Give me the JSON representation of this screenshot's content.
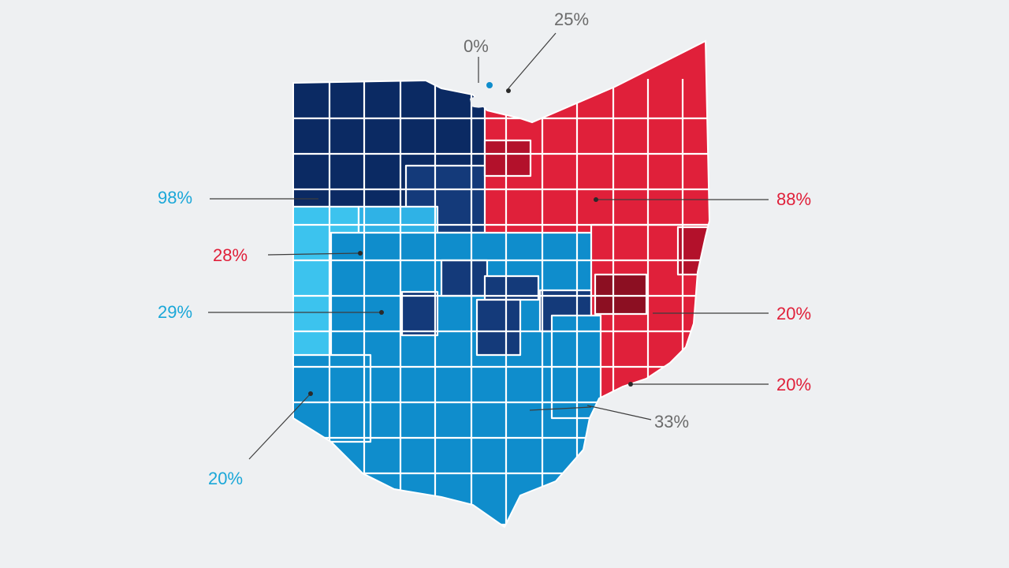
{
  "colors": {
    "background": "#eef0f2",
    "navy": "#0b2a63",
    "navy_light": "#143a7a",
    "blue_mid": "#0f8dcc",
    "blue_light": "#2fb2e6",
    "cyan": "#3cc3ee",
    "red": "#e0203a",
    "red_dark": "#b3112b",
    "maroon": "#8c0f22",
    "label_gray": "#6b6b6b",
    "label_blue": "#1aa7d8",
    "label_red": "#e0203a"
  },
  "callouts": [
    {
      "id": "top-right",
      "text": "25%",
      "tone": "gray"
    },
    {
      "id": "top",
      "text": "0%",
      "tone": "gray"
    },
    {
      "id": "left-1",
      "text": "98%",
      "tone": "blue"
    },
    {
      "id": "left-2",
      "text": "28%",
      "tone": "red"
    },
    {
      "id": "left-3",
      "text": "29%",
      "tone": "blue"
    },
    {
      "id": "bottom-left",
      "text": "20%",
      "tone": "blue"
    },
    {
      "id": "right-1",
      "text": "88%",
      "tone": "red"
    },
    {
      "id": "right-2",
      "text": "20%",
      "tone": "red"
    },
    {
      "id": "right-3",
      "text": "20%",
      "tone": "red"
    },
    {
      "id": "bottom-right",
      "text": "33%",
      "tone": "gray"
    }
  ]
}
